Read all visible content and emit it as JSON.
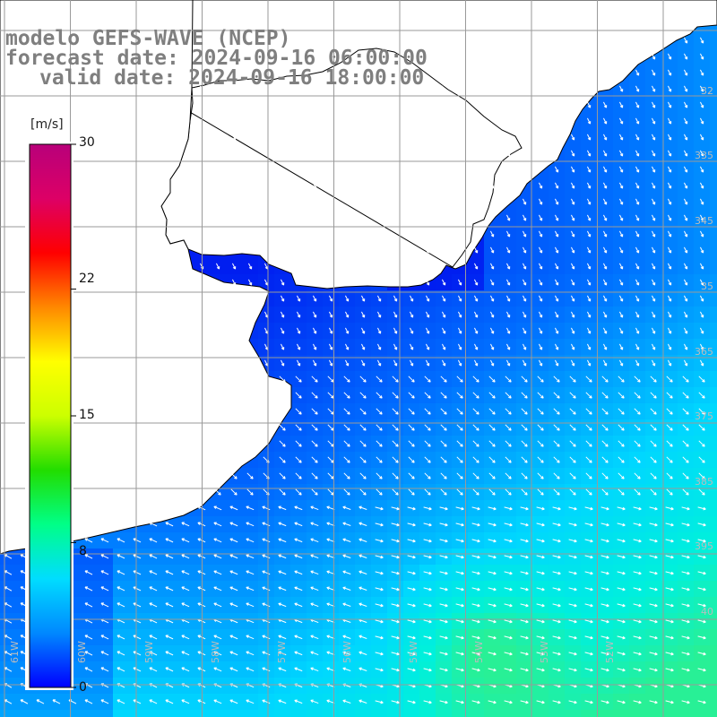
{
  "title": {
    "line1": "modelo GEFS-WAVE (NCEP)",
    "line2": "forecast date: 2024-09-16 06:00:00",
    "line3": "valid date: 2024-09-16 18:00:00"
  },
  "colorbar": {
    "unit": "[m/s]",
    "min": 0,
    "max": 30,
    "ticks": [
      "30",
      "22",
      "15",
      "8",
      "0"
    ],
    "tick_values": [
      30,
      22,
      15,
      8,
      0
    ],
    "colors": [
      "#0000ff",
      "#0088ff",
      "#00ddff",
      "#00ff88",
      "#22dd00",
      "#ccff00",
      "#ffff00",
      "#ff8800",
      "#ff0000",
      "#dd0066",
      "#b8007a"
    ]
  },
  "lat_labels": [
    "32",
    "335",
    "345",
    "35",
    "365",
    "375",
    "385",
    "395",
    "40"
  ],
  "lon_labels": [
    "61W",
    "60W",
    "59W",
    "58W",
    "57W",
    "56W",
    "55W",
    "54W",
    "53W",
    "52W"
  ],
  "colors": {
    "land": "#ffffff",
    "grid": "#9a9a9a",
    "coast": "#000000",
    "arrow": "#ffffff",
    "title": "#7f7f7f"
  }
}
